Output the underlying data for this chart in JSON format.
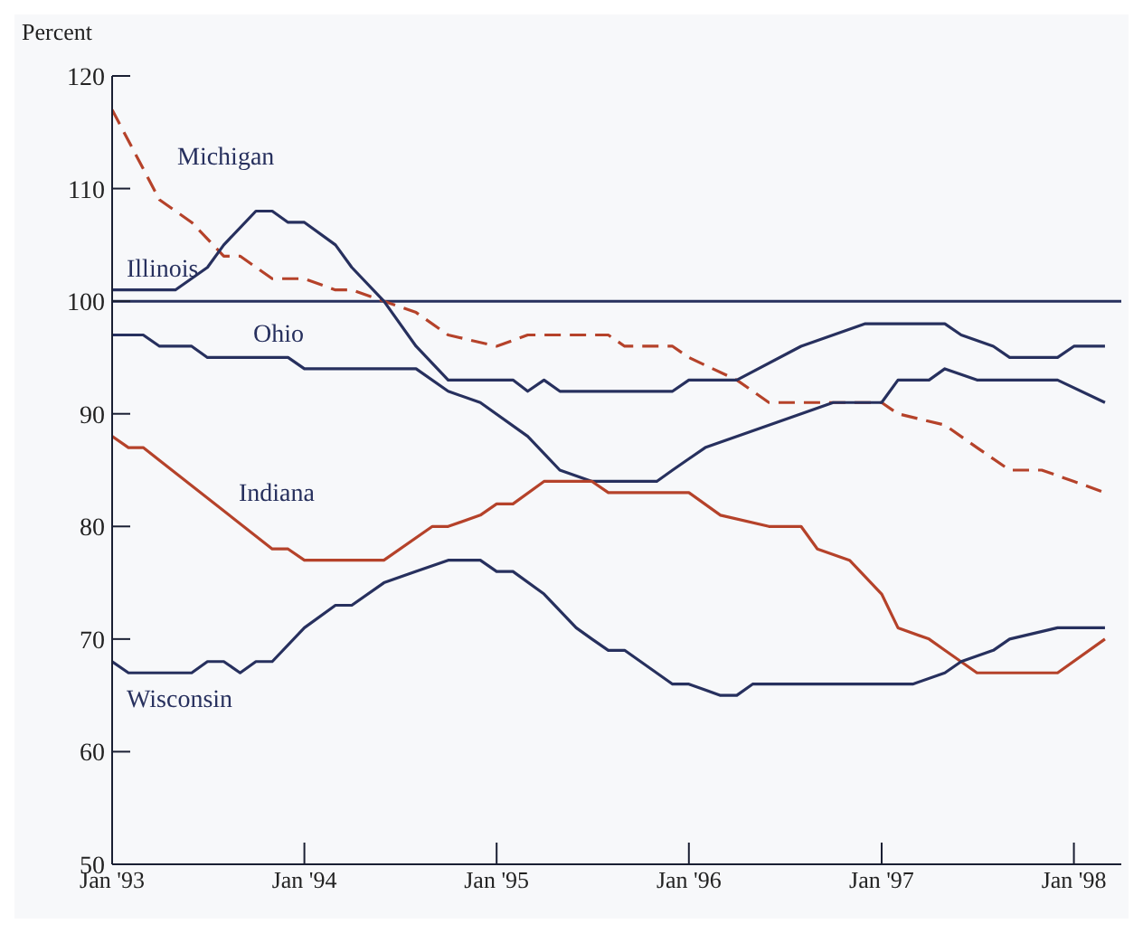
{
  "chart_data": {
    "type": "line",
    "ylabel": "Percent",
    "xlim": [
      "1993-01",
      "1998-04"
    ],
    "xticks": [
      {
        "value": "1993-01",
        "label": "Jan '93"
      },
      {
        "value": "1994-01",
        "label": "Jan '94"
      },
      {
        "value": "1995-01",
        "label": "Jan '95"
      },
      {
        "value": "1996-01",
        "label": "Jan '96"
      },
      {
        "value": "1997-01",
        "label": "Jan '97"
      },
      {
        "value": "1998-01",
        "label": "Jan '98"
      }
    ],
    "ylim": [
      50,
      120
    ],
    "yticks": [
      50,
      60,
      70,
      80,
      90,
      100,
      110,
      120
    ],
    "grid": false,
    "legend": false,
    "marker": "none",
    "ref_lines": [
      {
        "axis": "y",
        "value": 100,
        "color": "#27305e"
      }
    ],
    "series": [
      {
        "name": "Michigan",
        "color": "#b5422a",
        "line_style": "dashed",
        "x": [
          "1993-01",
          "1993-04",
          "1993-06",
          "1993-08",
          "1993-09",
          "1993-11",
          "1994-01",
          "1994-03",
          "1994-04",
          "1994-06",
          "1994-08",
          "1994-10",
          "1995-01",
          "1995-03",
          "1995-08",
          "1995-09",
          "1995-12",
          "1996-01",
          "1996-04",
          "1996-06",
          "1997-01",
          "1997-02",
          "1997-05",
          "1997-07",
          "1997-09",
          "1997-11",
          "1998-01",
          "1998-03"
        ],
        "values": [
          117,
          109,
          107,
          104,
          104,
          102,
          102,
          101,
          101,
          100,
          99,
          97,
          96,
          97,
          97,
          96,
          96,
          95,
          93,
          91,
          91,
          90,
          89,
          87,
          85,
          85,
          84,
          83
        ]
      },
      {
        "name": "Illinois",
        "color": "#27305e",
        "line_style": "solid",
        "x": [
          "1993-01",
          "1993-05",
          "1993-07",
          "1993-08",
          "1993-10",
          "1993-11",
          "1993-12",
          "1994-01",
          "1994-03",
          "1994-04",
          "1994-06",
          "1994-08",
          "1994-10",
          "1995-02",
          "1995-03",
          "1995-04",
          "1995-05",
          "1995-12",
          "1996-01",
          "1996-04",
          "1996-08",
          "1996-10",
          "1996-12",
          "1997-05",
          "1997-06",
          "1997-08",
          "1997-09",
          "1997-12",
          "1998-01",
          "1998-03"
        ],
        "values": [
          101,
          101,
          103,
          105,
          108,
          108,
          107,
          107,
          105,
          103,
          100,
          96,
          93,
          93,
          92,
          93,
          92,
          92,
          93,
          93,
          96,
          97,
          98,
          98,
          97,
          96,
          95,
          95,
          96,
          96
        ]
      },
      {
        "name": "Ohio",
        "color": "#27305e",
        "line_style": "solid",
        "x": [
          "1993-01",
          "1993-03",
          "1993-04",
          "1993-06",
          "1993-07",
          "1993-12",
          "1994-01",
          "1994-08",
          "1994-10",
          "1994-12",
          "1995-03",
          "1995-05",
          "1995-07",
          "1995-11",
          "1995-12",
          "1996-01",
          "1996-02",
          "1996-06",
          "1996-08",
          "1996-10",
          "1997-01",
          "1997-02",
          "1997-04",
          "1997-05",
          "1997-07",
          "1997-12",
          "1998-03"
        ],
        "values": [
          97,
          97,
          96,
          96,
          95,
          95,
          94,
          94,
          92,
          91,
          88,
          85,
          84,
          84,
          85,
          86,
          87,
          89,
          90,
          91,
          91,
          93,
          93,
          94,
          93,
          93,
          91
        ]
      },
      {
        "name": "Indiana",
        "color": "#b5422a",
        "line_style": "solid",
        "x": [
          "1993-01",
          "1993-02",
          "1993-03",
          "1993-11",
          "1993-12",
          "1994-01",
          "1994-06",
          "1994-09",
          "1994-10",
          "1994-12",
          "1995-01",
          "1995-02",
          "1995-04",
          "1995-07",
          "1995-08",
          "1996-01",
          "1996-03",
          "1996-06",
          "1996-08",
          "1996-09",
          "1996-11",
          "1997-01",
          "1997-02",
          "1997-04",
          "1997-05",
          "1997-07",
          "1997-12",
          "1998-03"
        ],
        "values": [
          88,
          87,
          87,
          78,
          78,
          77,
          77,
          80,
          80,
          81,
          82,
          82,
          84,
          84,
          83,
          83,
          81,
          80,
          80,
          78,
          77,
          74,
          71,
          70,
          69,
          67,
          67,
          70
        ]
      },
      {
        "name": "Wisconsin",
        "color": "#27305e",
        "line_style": "solid",
        "x": [
          "1993-01",
          "1993-02",
          "1993-06",
          "1993-07",
          "1993-08",
          "1993-09",
          "1993-10",
          "1993-11",
          "1994-01",
          "1994-03",
          "1994-04",
          "1994-06",
          "1994-08",
          "1994-10",
          "1994-12",
          "1995-01",
          "1995-02",
          "1995-04",
          "1995-06",
          "1995-07",
          "1995-08",
          "1995-09",
          "1995-12",
          "1996-01",
          "1996-03",
          "1996-04",
          "1996-05",
          "1997-03",
          "1997-05",
          "1997-06",
          "1997-08",
          "1997-09",
          "1997-12",
          "1998-03"
        ],
        "values": [
          68,
          67,
          67,
          68,
          68,
          67,
          68,
          68,
          71,
          73,
          73,
          75,
          76,
          77,
          77,
          76,
          76,
          74,
          71,
          70,
          69,
          69,
          66,
          66,
          65,
          65,
          66,
          66,
          67,
          68,
          69,
          70,
          71,
          71
        ]
      }
    ]
  }
}
